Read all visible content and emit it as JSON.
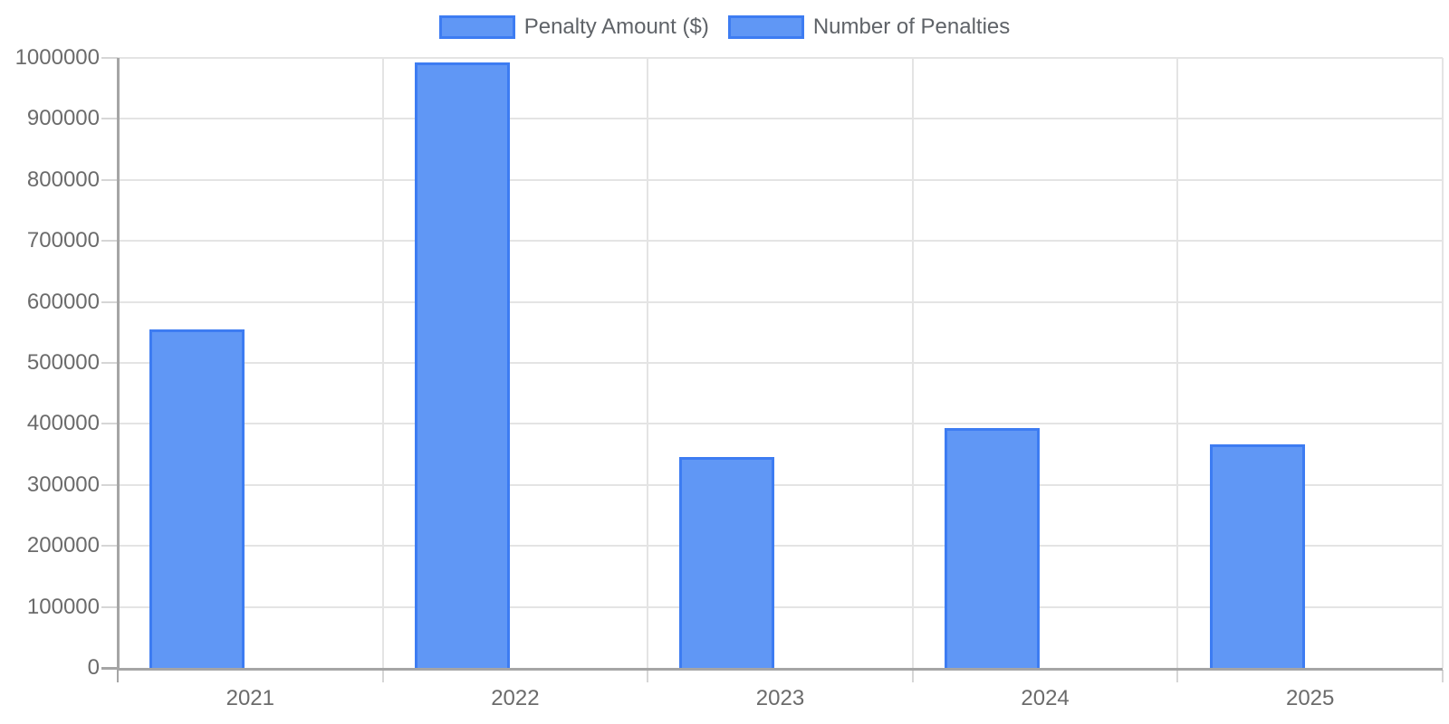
{
  "chart_data": {
    "type": "bar",
    "title": "",
    "xlabel": "",
    "ylabel": "",
    "categories": [
      "2021",
      "2022",
      "2023",
      "2024",
      "2025"
    ],
    "series": [
      {
        "name": "Penalty Amount ($)",
        "values": [
          555000,
          993000,
          345000,
          393000,
          366000
        ],
        "fill_color": "#6097f5",
        "border_color": "#3d7cf2"
      },
      {
        "name": "Number of Penalties",
        "values": [
          0,
          0,
          0,
          0,
          0
        ],
        "fill_color": "#6097f5",
        "border_color": "#3d7cf2",
        "note": "Bars are sub-pixel height at this axis scale (values far below 100000), so they are not visible in the plot."
      }
    ],
    "ylim": [
      0,
      1000000
    ],
    "ytick_step": 100000,
    "y_ticks": [
      0,
      100000,
      200000,
      300000,
      400000,
      500000,
      600000,
      700000,
      800000,
      900000,
      1000000
    ],
    "legend_position": "top",
    "grid": true
  },
  "colors": {
    "background": "#ffffff",
    "grid_line": "#e4e4e4",
    "axis_line": "#a5a5a5",
    "tick_mark": "#d6d6d6",
    "tick_text": "#6b6b6b",
    "legend_text": "#5f6368",
    "bar_fill": "#6097f5",
    "bar_border": "#3d7cf2"
  }
}
